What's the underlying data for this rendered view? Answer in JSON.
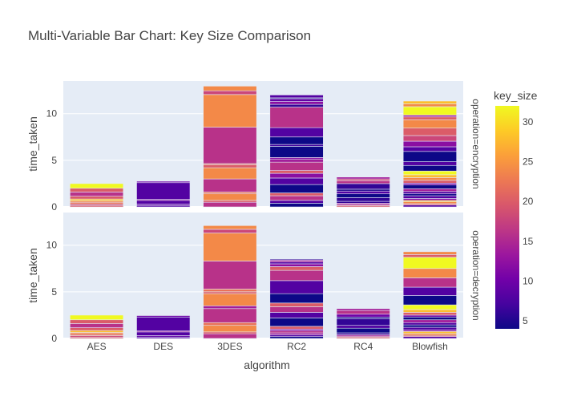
{
  "chart_data": {
    "type": "bar",
    "barmode": "stacked",
    "title": "Multi-Variable Bar Chart: Key Size Comparison",
    "xlabel": "algorithm",
    "ylabel": "time_taken",
    "categories": [
      "AES",
      "DES",
      "3DES",
      "RC2",
      "RC4",
      "Blowfish"
    ],
    "ylim": [
      0,
      13.5
    ],
    "yticks": [
      "0",
      "5",
      "10"
    ],
    "yticks_values": [
      0,
      5,
      10
    ],
    "facets": [
      {
        "label": "operation=encryption",
        "stacks": [
          [
            [
              0.15,
              20
            ],
            [
              0.15,
              18
            ],
            [
              0.2,
              22
            ],
            [
              0.15,
              24
            ],
            [
              0.2,
              28
            ],
            [
              0.3,
              20
            ],
            [
              0.45,
              16
            ],
            [
              0.4,
              20
            ],
            [
              0.5,
              32
            ]
          ],
          [
            [
              0.15,
              8
            ],
            [
              0.15,
              9
            ],
            [
              0.4,
              8
            ],
            [
              0.1,
              14
            ],
            [
              1.8,
              8
            ],
            [
              0.15,
              10
            ]
          ],
          [
            [
              0.5,
              16
            ],
            [
              0.2,
              20
            ],
            [
              0.7,
              24
            ],
            [
              0.2,
              22
            ],
            [
              1.4,
              16
            ],
            [
              1.2,
              24
            ],
            [
              0.3,
              20
            ],
            [
              0.15,
              21
            ],
            [
              3.9,
              16
            ],
            [
              3.5,
              24
            ],
            [
              0.4,
              18
            ],
            [
              0.5,
              24
            ]
          ],
          [
            [
              0.4,
              4
            ],
            [
              0.3,
              8
            ],
            [
              0.5,
              16
            ],
            [
              0.3,
              20
            ],
            [
              0.9,
              4
            ],
            [
              0.7,
              8
            ],
            [
              0.5,
              12
            ],
            [
              0.3,
              20
            ],
            [
              0.9,
              16
            ],
            [
              0.3,
              14
            ],
            [
              0.2,
              12
            ],
            [
              1.2,
              4
            ],
            [
              0.2,
              7
            ],
            [
              0.8,
              4
            ],
            [
              1.0,
              8
            ],
            [
              2.2,
              16
            ],
            [
              0.3,
              6
            ],
            [
              0.3,
              12
            ],
            [
              0.3,
              9
            ],
            [
              0.1,
              4
            ],
            [
              0.3,
              8
            ]
          ],
          [
            [
              0.15,
              20
            ],
            [
              0.1,
              16
            ],
            [
              0.15,
              14
            ],
            [
              0.2,
              6
            ],
            [
              0.4,
              6
            ],
            [
              0.4,
              4
            ],
            [
              0.3,
              8
            ],
            [
              0.2,
              5
            ],
            [
              0.6,
              6
            ],
            [
              0.3,
              16
            ],
            [
              0.2,
              18
            ],
            [
              0.2,
              14
            ]
          ],
          [
            [
              0.2,
              8
            ],
            [
              0.15,
              20
            ],
            [
              0.2,
              24
            ],
            [
              0.15,
              28
            ],
            [
              0.2,
              12
            ],
            [
              0.3,
              8
            ],
            [
              0.2,
              4
            ],
            [
              0.25,
              8
            ],
            [
              0.3,
              14
            ],
            [
              0.4,
              4
            ],
            [
              0.2,
              10
            ],
            [
              0.3,
              20
            ],
            [
              0.3,
              24
            ],
            [
              0.3,
              28
            ],
            [
              0.4,
              32
            ],
            [
              0.6,
              4
            ],
            [
              0.4,
              8
            ],
            [
              1.1,
              4
            ],
            [
              0.5,
              8
            ],
            [
              0.6,
              12
            ],
            [
              0.6,
              18
            ],
            [
              0.8,
              20
            ],
            [
              0.9,
              24
            ],
            [
              0.3,
              20
            ],
            [
              0.2,
              14
            ],
            [
              0.9,
              32
            ],
            [
              0.3,
              24
            ],
            [
              0.3,
              28
            ]
          ]
        ]
      },
      {
        "label": "operation=decryption",
        "stacks": [
          [
            [
              0.15,
              20
            ],
            [
              0.15,
              18
            ],
            [
              0.2,
              22
            ],
            [
              0.15,
              24
            ],
            [
              0.2,
              28
            ],
            [
              0.3,
              20
            ],
            [
              0.45,
              16
            ],
            [
              0.4,
              20
            ],
            [
              0.5,
              32
            ]
          ],
          [
            [
              0.15,
              8
            ],
            [
              0.15,
              9
            ],
            [
              0.4,
              8
            ],
            [
              0.1,
              14
            ],
            [
              1.5,
              8
            ],
            [
              0.15,
              10
            ]
          ],
          [
            [
              0.5,
              16
            ],
            [
              0.2,
              20
            ],
            [
              0.7,
              24
            ],
            [
              0.3,
              22
            ],
            [
              1.5,
              16
            ],
            [
              0.3,
              14
            ],
            [
              1.3,
              24
            ],
            [
              0.2,
              20
            ],
            [
              0.3,
              22
            ],
            [
              3.0,
              16
            ],
            [
              3.0,
              24
            ],
            [
              0.4,
              18
            ],
            [
              0.4,
              24
            ]
          ],
          [
            [
              0.2,
              4
            ],
            [
              0.2,
              8
            ],
            [
              0.2,
              14
            ],
            [
              0.2,
              16
            ],
            [
              0.2,
              12
            ],
            [
              0.3,
              20
            ],
            [
              0.9,
              4
            ],
            [
              0.6,
              8
            ],
            [
              0.6,
              16
            ],
            [
              0.4,
              20
            ],
            [
              1.0,
              4
            ],
            [
              1.4,
              8
            ],
            [
              1.1,
              16
            ],
            [
              0.4,
              20
            ],
            [
              0.3,
              12
            ],
            [
              0.2,
              8
            ],
            [
              0.2,
              14
            ],
            [
              0.1,
              6
            ]
          ],
          [
            [
              0.15,
              20
            ],
            [
              0.1,
              16
            ],
            [
              0.15,
              14
            ],
            [
              0.2,
              6
            ],
            [
              0.5,
              4
            ],
            [
              0.3,
              8
            ],
            [
              0.7,
              6
            ],
            [
              0.2,
              5
            ],
            [
              0.3,
              10
            ],
            [
              0.4,
              16
            ],
            [
              0.2,
              14
            ]
          ],
          [
            [
              0.2,
              8
            ],
            [
              0.15,
              20
            ],
            [
              0.2,
              24
            ],
            [
              0.2,
              28
            ],
            [
              0.15,
              12
            ],
            [
              0.3,
              8
            ],
            [
              0.25,
              4
            ],
            [
              0.25,
              8
            ],
            [
              0.3,
              14
            ],
            [
              0.3,
              4
            ],
            [
              0.2,
              10
            ],
            [
              0.3,
              20
            ],
            [
              0.3,
              28
            ],
            [
              0.5,
              32
            ],
            [
              1.0,
              4
            ],
            [
              0.9,
              8
            ],
            [
              1.0,
              16
            ],
            [
              1.0,
              24
            ],
            [
              1.2,
              32
            ],
            [
              0.3,
              20
            ],
            [
              0.3,
              24
            ]
          ]
        ]
      }
    ],
    "colorbar": {
      "title": "key_size",
      "range": [
        4,
        32
      ],
      "ticks": [
        "5",
        "10",
        "15",
        "20",
        "25",
        "30"
      ],
      "ticks_values": [
        5,
        10,
        15,
        20,
        25,
        30
      ],
      "colorscale": [
        "#0d0887",
        "#46039f",
        "#7201a8",
        "#9c179e",
        "#bd3786",
        "#d8576b",
        "#ed7953",
        "#fb9f3a",
        "#fdca26",
        "#f0f921"
      ]
    },
    "plot_bg": "#e5ecf6",
    "grid": true,
    "legend": "colorbar-right"
  }
}
